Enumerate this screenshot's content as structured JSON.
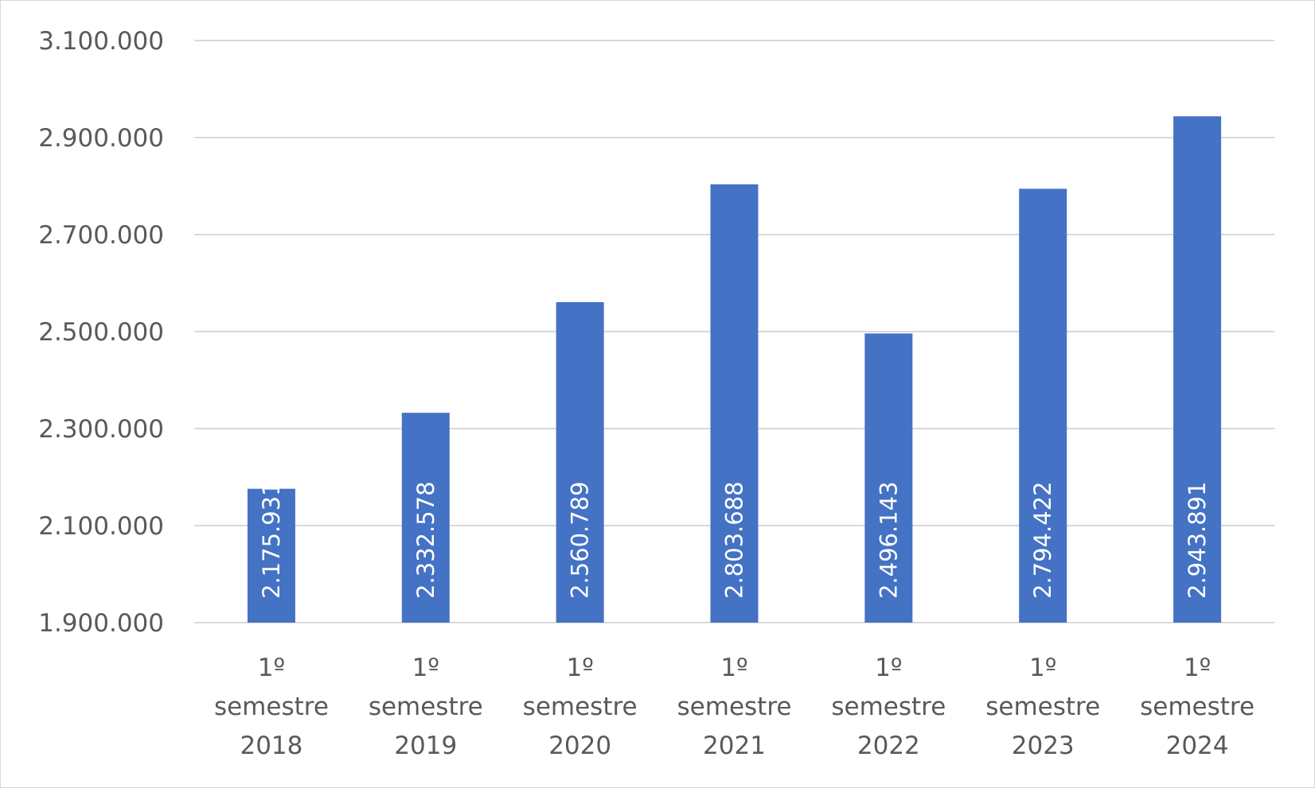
{
  "chart_data": {
    "type": "bar",
    "title": "",
    "xlabel": "",
    "ylabel": "",
    "categories": [
      [
        "1º",
        "semestre",
        "2018"
      ],
      [
        "1º",
        "semestre",
        "2019"
      ],
      [
        "1º",
        "semestre",
        "2020"
      ],
      [
        "1º",
        "semestre",
        "2021"
      ],
      [
        "1º",
        "semestre",
        "2022"
      ],
      [
        "1º",
        "semestre",
        "2023"
      ],
      [
        "1º",
        "semestre",
        "2024"
      ]
    ],
    "values": [
      2175931,
      2332578,
      2560789,
      2803688,
      2496143,
      2794422,
      2943891
    ],
    "data_labels": [
      "2.175.931",
      "2.332.578",
      "2.560.789",
      "2.803.688",
      "2.496.143",
      "2.794.422",
      "2.943.891"
    ],
    "ylim": [
      1900000,
      3100000
    ],
    "y_ticks": [
      {
        "value": 1900000,
        "label": "1.900.000"
      },
      {
        "value": 2100000,
        "label": "2.100.000"
      },
      {
        "value": 2300000,
        "label": "2.300.000"
      },
      {
        "value": 2500000,
        "label": "2.500.000"
      },
      {
        "value": 2700000,
        "label": "2.700.000"
      },
      {
        "value": 2900000,
        "label": "2.900.000"
      },
      {
        "value": 3100000,
        "label": "3.100.000"
      }
    ],
    "grid": true,
    "legend": "none",
    "colors": {
      "bar": "#4472c4",
      "grid": "#d9d9d9",
      "text": "#595959",
      "data_label": "#ffffff"
    }
  }
}
